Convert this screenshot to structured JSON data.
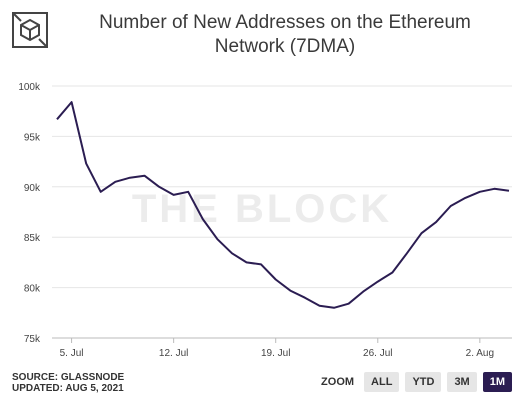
{
  "header": {
    "title_line1": "Number of New Addresses on the Ethereum",
    "title_line2": "Network (7DMA)",
    "logo_icon": "the-block-cube-logo"
  },
  "footer": {
    "source": "SOURCE: GLASSNODE",
    "updated": "UPDATED: AUG 5, 2021"
  },
  "zoom": {
    "label": "ZOOM",
    "buttons": [
      "ALL",
      "YTD",
      "3M",
      "1M"
    ],
    "active": "1M"
  },
  "watermark": "THE BLOCK",
  "colors": {
    "line": "#2b1d52",
    "active_button": "#2b1d52",
    "grid": "#e6e6e6"
  },
  "chart_data": {
    "type": "line",
    "title": "Number of New Addresses on the Ethereum Network (7DMA)",
    "x_ticks": [
      "5. Jul",
      "12. Jul",
      "19. Jul",
      "26. Jul",
      "2. Aug"
    ],
    "y_ticks": [
      "100k",
      "95k",
      "90k",
      "85k",
      "80k",
      "75k"
    ],
    "ylim": [
      75000,
      100000
    ],
    "grid": "horizontal",
    "series": [
      {
        "x": [
          "2021-07-04",
          "2021-07-05",
          "2021-07-06",
          "2021-07-07",
          "2021-07-08",
          "2021-07-09",
          "2021-07-10",
          "2021-07-11",
          "2021-07-12",
          "2021-07-13",
          "2021-07-14",
          "2021-07-15",
          "2021-07-16",
          "2021-07-17",
          "2021-07-18",
          "2021-07-19",
          "2021-07-20",
          "2021-07-21",
          "2021-07-22",
          "2021-07-23",
          "2021-07-24",
          "2021-07-25",
          "2021-07-26",
          "2021-07-27",
          "2021-07-28",
          "2021-07-29",
          "2021-07-30",
          "2021-07-31",
          "2021-08-01",
          "2021-08-02",
          "2021-08-03",
          "2021-08-04"
        ],
        "values": [
          96700,
          98400,
          92300,
          89500,
          90500,
          90900,
          91100,
          90000,
          89200,
          89500,
          86800,
          84800,
          83400,
          82500,
          82300,
          80800,
          79700,
          79000,
          78200,
          78000,
          78400,
          79600,
          80600,
          81500,
          83400,
          85400,
          86500,
          88100,
          88900,
          89500,
          89800,
          89600
        ]
      }
    ]
  }
}
